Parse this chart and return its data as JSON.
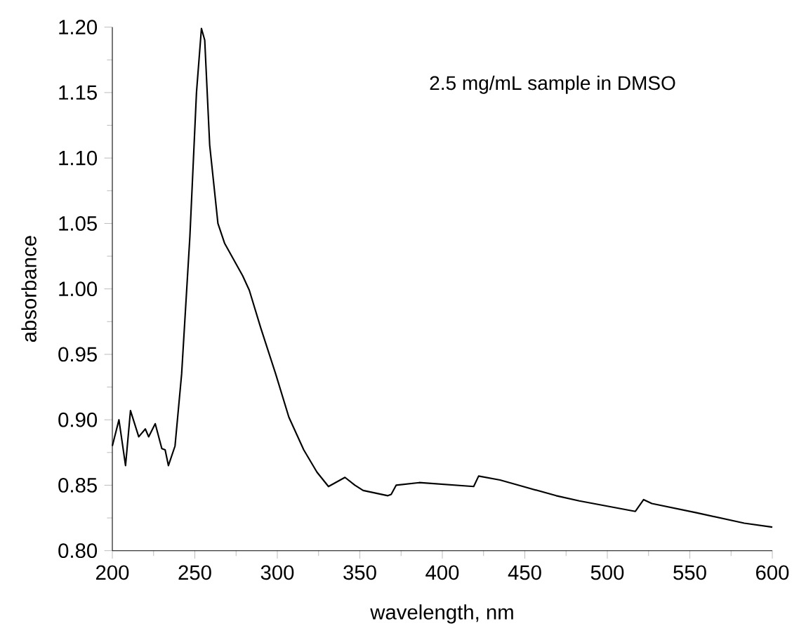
{
  "chart_data": {
    "type": "line",
    "xlabel": "wavelength, nm",
    "ylabel": "absorbance",
    "annotations": [
      "2.5 mg/mL sample in DMSO"
    ],
    "xlim": [
      200,
      600
    ],
    "ylim": [
      0.8,
      1.2
    ],
    "xticks": [
      200,
      250,
      300,
      350,
      400,
      450,
      500,
      550,
      600
    ],
    "yticks": [
      {
        "value": 0.8,
        "label": "0.80"
      },
      {
        "value": 0.85,
        "label": "0.85"
      },
      {
        "value": 0.9,
        "label": "0.90"
      },
      {
        "value": 0.95,
        "label": "0.95"
      },
      {
        "value": 1.0,
        "label": "1.00"
      },
      {
        "value": 1.05,
        "label": "1.05"
      },
      {
        "value": 1.1,
        "label": "1.10"
      },
      {
        "value": 1.15,
        "label": "1.15"
      },
      {
        "value": 1.2,
        "label": "1.20"
      }
    ],
    "grid": false,
    "marker": "none",
    "line_style": "solid",
    "series": [
      {
        "color": "#000000",
        "x": [
          200,
          204,
          208,
          211,
          216,
          220,
          222,
          226,
          230,
          232,
          234,
          238,
          242,
          247,
          251,
          254,
          256,
          259,
          264,
          268,
          279,
          283,
          290,
          299,
          307,
          316,
          324,
          331,
          341,
          347,
          352,
          367,
          369,
          372,
          386,
          419,
          422,
          435,
          449,
          469,
          483,
          517,
          522,
          527,
          554,
          583,
          600
        ],
        "values": [
          0.88,
          0.9,
          0.865,
          0.907,
          0.887,
          0.893,
          0.887,
          0.897,
          0.878,
          0.877,
          0.865,
          0.88,
          0.935,
          1.04,
          1.15,
          1.199,
          1.19,
          1.11,
          1.05,
          1.035,
          1.01,
          0.999,
          0.97,
          0.935,
          0.902,
          0.877,
          0.86,
          0.849,
          0.856,
          0.85,
          0.846,
          0.842,
          0.843,
          0.85,
          0.852,
          0.849,
          0.857,
          0.854,
          0.849,
          0.842,
          0.838,
          0.83,
          0.839,
          0.836,
          0.829,
          0.821,
          0.818
        ]
      }
    ]
  }
}
